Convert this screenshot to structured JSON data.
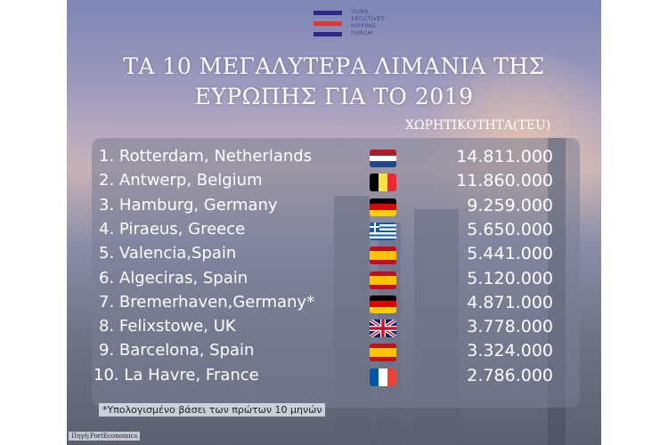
{
  "logo": {
    "lines": [
      "OUNG",
      "XECUTIVES",
      "HIPPING",
      "FORUM"
    ],
    "colors": [
      "#2c2a8a",
      "#e2333a",
      "#2c2a8a"
    ]
  },
  "title": {
    "line1": "ΤΑ 10 ΜΕΓΑΛΥΤΕΡΑ ΛΙΜΑΝΙΑ ΤΗΣ",
    "line2": "ΕΥΡΩΠΗΣ ΓΙΑ ΤΟ 2019"
  },
  "column_header": "ΧΩΡΗΤΙΚΟΤΗΤΑ(TEU)",
  "ports": [
    {
      "rank": "1.",
      "name": "Rotterdam, Netherlands",
      "flag": "netherlands",
      "teu": "14.811.000"
    },
    {
      "rank": "2.",
      "name": "Antwerp, Belgium",
      "flag": "belgium",
      "teu": "11.860.000"
    },
    {
      "rank": "3.",
      "name": "Hamburg, Germany",
      "flag": "germany",
      "teu": "9.259.000"
    },
    {
      "rank": "4.",
      "name": "Piraeus, Greece",
      "flag": "greece",
      "teu": "5.650.000"
    },
    {
      "rank": "5.",
      "name": "Valencia,Spain",
      "flag": "spain",
      "teu": "5.441.000"
    },
    {
      "rank": "6.",
      "name": "Algeciras, Spain",
      "flag": "spain",
      "teu": "5.120.000"
    },
    {
      "rank": "7.",
      "name": "Bremerhaven,Germany*",
      "flag": "germany",
      "teu": "4.871.000"
    },
    {
      "rank": "8.",
      "name": "Felixstowe, UK",
      "flag": "uk",
      "teu": "3.778.000"
    },
    {
      "rank": "9.",
      "name": "Barcelona, Spain",
      "flag": "spain",
      "teu": "3.324.000"
    },
    {
      "rank": "10.",
      "name": "La Havre, France",
      "flag": "france",
      "teu": "2.786.000"
    }
  ],
  "footnote": "*Υπολογισμένο βάσει των πρώτων 10 μηνών",
  "source": "Πηγή:PortEconomics"
}
